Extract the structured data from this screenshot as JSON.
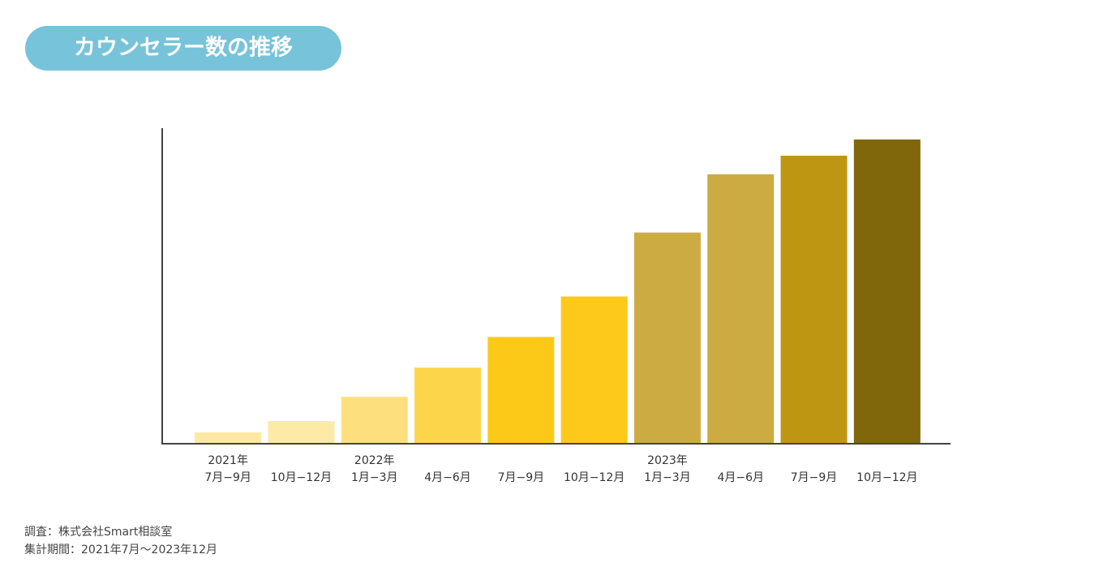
{
  "chart_data": {
    "type": "bar",
    "title": "カウンセラー数の推移",
    "categories": [
      "2021年\n7月−9月",
      "10月−12月",
      "2022年\n1月−3月",
      "4月−6月",
      "7月−9月",
      "10月−12月",
      "2023年\n1月−3月",
      "4月−6月",
      "7月−9月",
      "10月−12月"
    ],
    "values": [
      13,
      27,
      57,
      93,
      131,
      181,
      260,
      332,
      355,
      375
    ],
    "colors": [
      "#fde9a3",
      "#fdeaa6",
      "#fde07d",
      "#fcd54a",
      "#fcc918",
      "#fdc91b",
      "#cbab42",
      "#cbab42",
      "#bf9612",
      "#80670b"
    ],
    "ylim": [
      0,
      389
    ],
    "notes": [
      "調査：株式会社Smart相談室",
      "集計期間：2021年7月〜2023年12月"
    ]
  }
}
